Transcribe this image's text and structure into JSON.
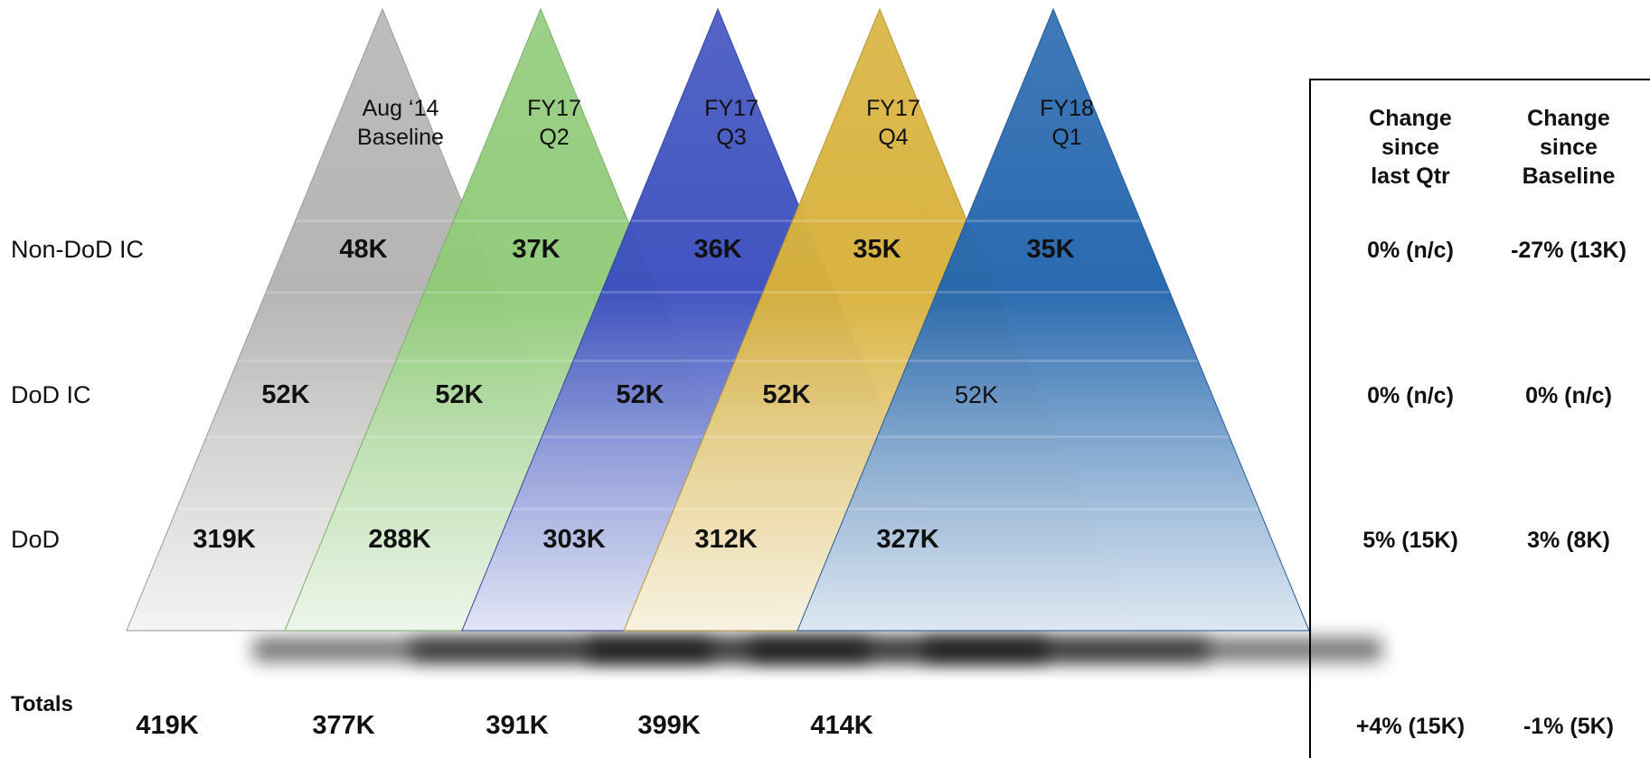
{
  "chart_data": {
    "type": "table",
    "rows": [
      "Non-DoD IC",
      "DoD IC",
      "DoD"
    ],
    "totals_label": "Totals",
    "periods": [
      {
        "title": [
          "Aug ‘14",
          "Baseline"
        ],
        "color": "#b5b3b1",
        "values": {
          "Non-DoD IC": "48K",
          "DoD IC": "52K",
          "DoD": "319K"
        },
        "total": "419K"
      },
      {
        "title": [
          "FY17",
          "Q2"
        ],
        "color": "#8fcb78",
        "values": {
          "Non-DoD IC": "37K",
          "DoD IC": "52K",
          "DoD": "288K"
        },
        "total": "377K"
      },
      {
        "title": [
          "FY17",
          "Q3"
        ],
        "color": "#3b4fbf",
        "values": {
          "Non-DoD IC": "36K",
          "DoD IC": "52K",
          "DoD": "303K"
        },
        "total": "391K"
      },
      {
        "title": [
          "FY17",
          "Q4"
        ],
        "color": "#d8b13a",
        "values": {
          "Non-DoD IC": "35K",
          "DoD IC": "52K",
          "DoD": "312K"
        },
        "total": "399K"
      },
      {
        "title": [
          "FY18",
          "Q1"
        ],
        "color": "#2466ae",
        "values": {
          "Non-DoD IC": "35K",
          "DoD IC": "52K",
          "DoD": "327K"
        },
        "total": "414K"
      }
    ],
    "change_columns": [
      {
        "header": [
          "Change",
          "since",
          "last Qtr"
        ],
        "values": {
          "Non-DoD IC": "0% (n/c)",
          "DoD IC": "0% (n/c)",
          "DoD": "5% (15K)"
        },
        "total": "+4% (15K)"
      },
      {
        "header": [
          "Change",
          "since",
          "Baseline"
        ],
        "values": {
          "Non-DoD IC": "-27% (13K)",
          "DoD IC": "0% (n/c)",
          "DoD": "3% (8K)"
        },
        "total": "-1% (5K)"
      }
    ]
  }
}
